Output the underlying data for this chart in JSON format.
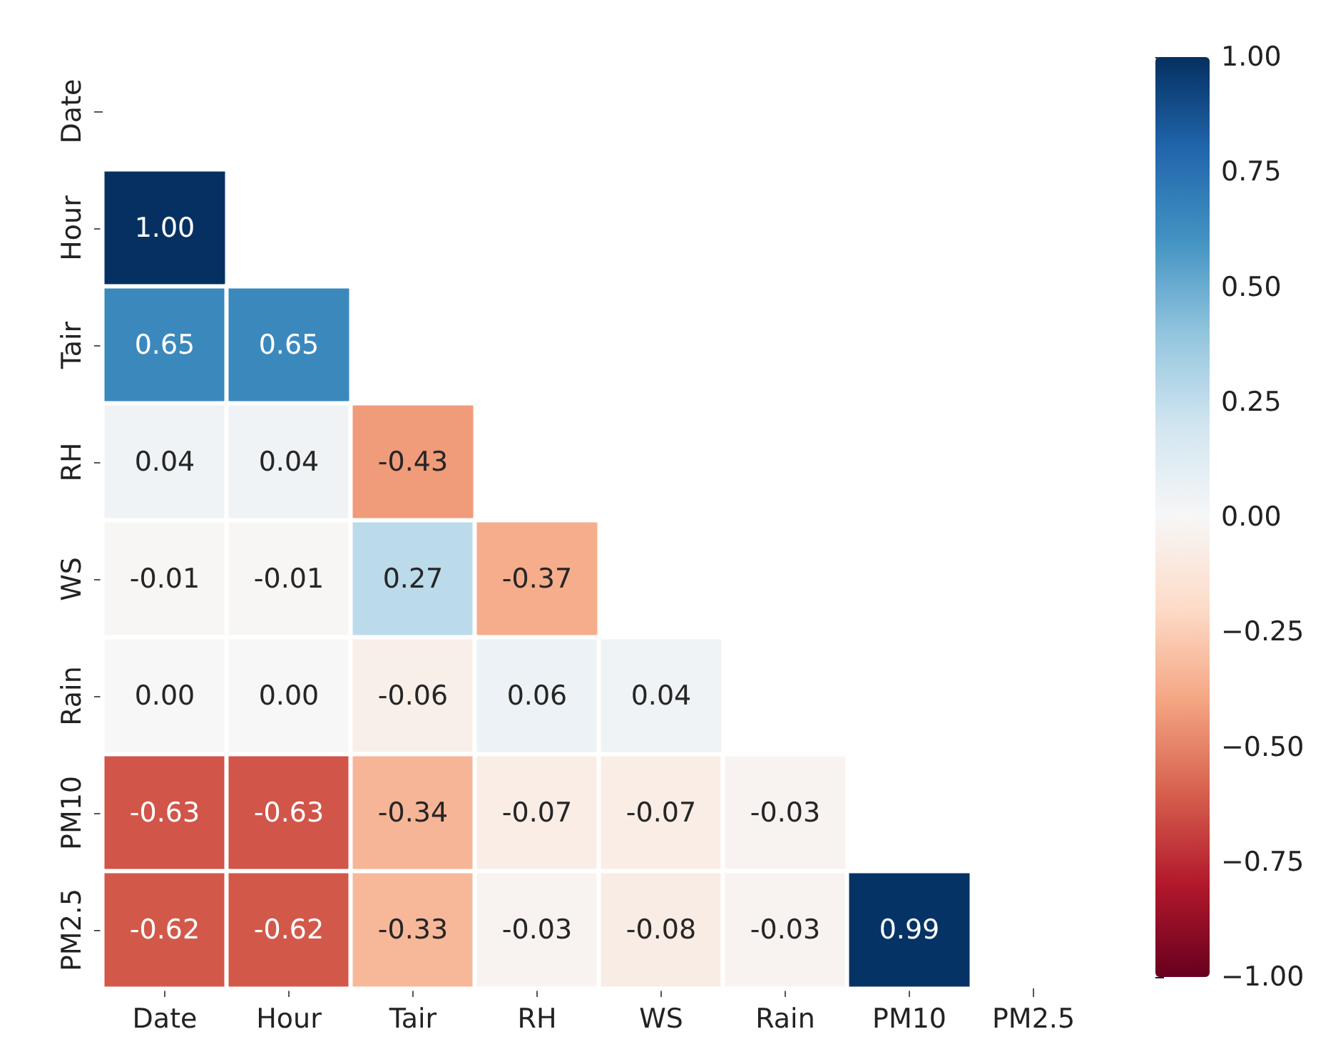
{
  "chart_data": {
    "type": "heatmap",
    "categories": [
      "Date",
      "Hour",
      "Tair",
      "RH",
      "WS",
      "Rain",
      "PM10",
      "PM2.5"
    ],
    "y_categories": [
      "Date",
      "Hour",
      "Tair",
      "RH",
      "WS",
      "Rain",
      "PM10",
      "PM2.5"
    ],
    "cells": [
      [
        null,
        null,
        null,
        null,
        null,
        null,
        null,
        null
      ],
      [
        1.0,
        null,
        null,
        null,
        null,
        null,
        null,
        null
      ],
      [
        0.65,
        0.65,
        null,
        null,
        null,
        null,
        null,
        null
      ],
      [
        0.04,
        0.04,
        -0.43,
        null,
        null,
        null,
        null,
        null
      ],
      [
        -0.01,
        -0.01,
        0.27,
        -0.37,
        null,
        null,
        null,
        null
      ],
      [
        0.0,
        0.0,
        -0.06,
        0.06,
        0.04,
        null,
        null,
        null
      ],
      [
        -0.63,
        -0.63,
        -0.34,
        -0.07,
        -0.07,
        -0.03,
        null,
        null
      ],
      [
        -0.62,
        -0.62,
        -0.33,
        -0.03,
        -0.08,
        -0.03,
        0.99,
        null
      ]
    ],
    "cell_labels": [
      [
        null,
        null,
        null,
        null,
        null,
        null,
        null,
        null
      ],
      [
        "1.00",
        null,
        null,
        null,
        null,
        null,
        null,
        null
      ],
      [
        "0.65",
        "0.65",
        null,
        null,
        null,
        null,
        null,
        null
      ],
      [
        "0.04",
        "0.04",
        "-0.43",
        null,
        null,
        null,
        null,
        null
      ],
      [
        "-0.01",
        "-0.01",
        "0.27",
        "-0.37",
        null,
        null,
        null,
        null
      ],
      [
        "0.00",
        "0.00",
        "-0.06",
        "0.06",
        "0.04",
        null,
        null,
        null
      ],
      [
        "-0.63",
        "-0.63",
        "-0.34",
        "-0.07",
        "-0.07",
        "-0.03",
        null,
        null
      ],
      [
        "-0.62",
        "-0.62",
        "-0.33",
        "-0.03",
        "-0.08",
        "-0.03",
        "0.99",
        null
      ]
    ],
    "clim": [
      -1,
      1
    ],
    "cticks": [
      {
        "value": -1,
        "label": "−1.00"
      },
      {
        "value": -0.75,
        "label": "−0.75"
      },
      {
        "value": -0.5,
        "label": "−0.50"
      },
      {
        "value": -0.25,
        "label": "−0.25"
      },
      {
        "value": 0,
        "label": "0.00"
      },
      {
        "value": 0.25,
        "label": "0.25"
      },
      {
        "value": 0.5,
        "label": "0.50"
      },
      {
        "value": 0.75,
        "label": "0.75"
      },
      {
        "value": 1,
        "label": "1.00"
      }
    ]
  }
}
